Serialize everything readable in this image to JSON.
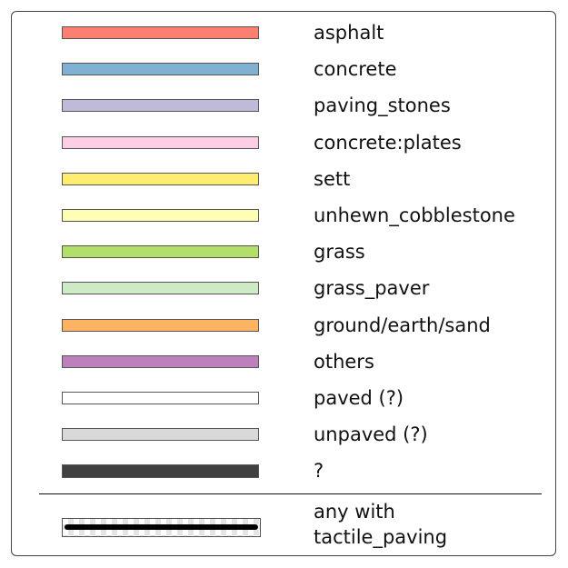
{
  "legend": {
    "items": [
      {
        "label": "asphalt",
        "color": "#fb8072"
      },
      {
        "label": "concrete",
        "color": "#80b1d3"
      },
      {
        "label": "paving_stones",
        "color": "#bebada"
      },
      {
        "label": "concrete:plates",
        "color": "#fccde5"
      },
      {
        "label": "sett",
        "color": "#ffed6f"
      },
      {
        "label": "unhewn_cobblestone",
        "color": "#ffffb3"
      },
      {
        "label": "grass",
        "color": "#b3de69"
      },
      {
        "label": "grass_paver",
        "color": "#ccebc5"
      },
      {
        "label": "ground/earth/sand",
        "color": "#fdb462"
      },
      {
        "label": "others",
        "color": "#bc80bd"
      },
      {
        "label": "paved (?)",
        "color": "#ffffff"
      },
      {
        "label": "unpaved (?)",
        "color": "#d9d9d9"
      },
      {
        "label": "?",
        "color": "#404040"
      }
    ],
    "tactile": {
      "label_line1": "any with",
      "label_line2": "tactile_paving",
      "line_color": "#000000"
    }
  }
}
